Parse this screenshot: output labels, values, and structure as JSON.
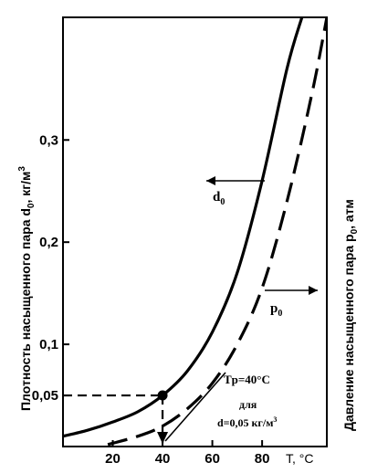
{
  "chart_data": {
    "type": "line",
    "title": "",
    "xlabel": "T, °C",
    "ylabel_left": "Плотность насыщенного пара d",
    "ylabel_left_sub": "0",
    "ylabel_left_unit": ", кг/м",
    "ylabel_left_unit_sup": "3",
    "ylabel_right": "Давление насыщенного пара p",
    "ylabel_right_sub": "0",
    "ylabel_right_unit": ", атм",
    "xlim": [
      0,
      106
    ],
    "ylim": [
      0,
      0.42
    ],
    "x_ticks": [
      20,
      40,
      60,
      80
    ],
    "y_ticks": [
      0.05,
      0.1,
      0.2,
      0.3
    ],
    "y_tick_labels": [
      "0,05",
      "0,1",
      "0,2",
      "0,3"
    ],
    "grid": false,
    "series": [
      {
        "name": "d0",
        "style": "solid",
        "x": [
          0,
          10,
          20,
          30,
          40,
          50,
          60,
          70,
          80,
          90,
          96
        ],
        "y": [
          0.01,
          0.016,
          0.024,
          0.034,
          0.05,
          0.074,
          0.112,
          0.17,
          0.26,
          0.37,
          0.42
        ]
      },
      {
        "name": "p0",
        "style": "dashed",
        "x": [
          18,
          30,
          40,
          50,
          60,
          70,
          80,
          90,
          100,
          106
        ],
        "y": [
          0.002,
          0.01,
          0.02,
          0.037,
          0.062,
          0.1,
          0.155,
          0.24,
          0.345,
          0.42
        ]
      }
    ],
    "annotations": {
      "d0_label": "d",
      "d0_label_sub": "0",
      "p0_label": "p",
      "p0_label_sub": "0",
      "point": {
        "x": 40,
        "y": 0.05
      },
      "tp_text": "Tp=40°C",
      "dlya_text": "для",
      "d_value_text": "d=0,05 кг/м",
      "d_value_sup": "3"
    },
    "colors": {
      "line": "#000000",
      "background": "#ffffff"
    }
  }
}
